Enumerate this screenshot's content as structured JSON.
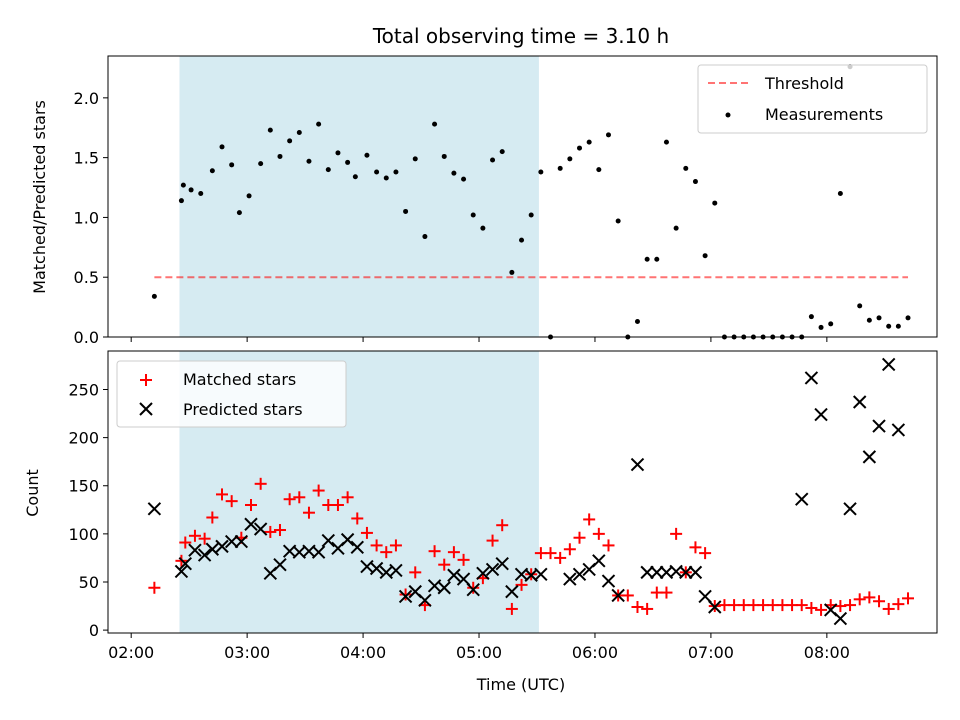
{
  "chart_data": [
    {
      "type": "scatter",
      "title": "Total observing time = 3.10 h",
      "ylabel": "Matched/Predicted stars",
      "xlabel": "",
      "xlim_hours": [
        1.8,
        8.95
      ],
      "ylim": [
        0,
        2.35
      ],
      "yticks": [
        0.0,
        0.5,
        1.0,
        1.5,
        2.0
      ],
      "ytick_labels": [
        "0.0",
        "0.5",
        "1.0",
        "1.5",
        "2.0"
      ],
      "shaded_interval": [
        "02:25",
        "05:31"
      ],
      "shade_color": "#add8e6",
      "legend_position": "upper right",
      "threshold": {
        "name": "Threshold",
        "value": 0.5,
        "x_range": [
          "02:12",
          "08:42"
        ],
        "color": "#ff0000",
        "style": "dashed"
      },
      "series": [
        {
          "name": "Measurements",
          "color": "#000000",
          "marker": "dot",
          "points": [
            [
              "02:12",
              0.34
            ],
            [
              "02:26",
              1.14
            ],
            [
              "02:27",
              1.27
            ],
            [
              "02:31",
              1.23
            ],
            [
              "02:36",
              1.2
            ],
            [
              "02:42",
              1.39
            ],
            [
              "02:47",
              1.59
            ],
            [
              "02:52",
              1.44
            ],
            [
              "02:56",
              1.04
            ],
            [
              "03:01",
              1.18
            ],
            [
              "03:07",
              1.45
            ],
            [
              "03:12",
              1.73
            ],
            [
              "03:17",
              1.51
            ],
            [
              "03:22",
              1.64
            ],
            [
              "03:27",
              1.71
            ],
            [
              "03:32",
              1.47
            ],
            [
              "03:37",
              1.78
            ],
            [
              "03:42",
              1.4
            ],
            [
              "03:47",
              1.54
            ],
            [
              "03:52",
              1.46
            ],
            [
              "03:56",
              1.34
            ],
            [
              "04:02",
              1.52
            ],
            [
              "04:07",
              1.38
            ],
            [
              "04:12",
              1.33
            ],
            [
              "04:17",
              1.38
            ],
            [
              "04:22",
              1.05
            ],
            [
              "04:27",
              1.49
            ],
            [
              "04:32",
              0.84
            ],
            [
              "04:37",
              1.78
            ],
            [
              "04:42",
              1.51
            ],
            [
              "04:47",
              1.37
            ],
            [
              "04:52",
              1.32
            ],
            [
              "04:57",
              1.02
            ],
            [
              "05:02",
              0.91
            ],
            [
              "05:07",
              1.48
            ],
            [
              "05:12",
              1.55
            ],
            [
              "05:17",
              0.54
            ],
            [
              "05:22",
              0.81
            ],
            [
              "05:27",
              1.02
            ],
            [
              "05:32",
              1.38
            ],
            [
              "05:37",
              0.0
            ],
            [
              "05:42",
              1.41
            ],
            [
              "05:47",
              1.49
            ],
            [
              "05:52",
              1.58
            ],
            [
              "05:57",
              1.63
            ],
            [
              "06:02",
              1.4
            ],
            [
              "06:07",
              1.69
            ],
            [
              "06:12",
              0.97
            ],
            [
              "06:17",
              0.0
            ],
            [
              "06:22",
              0.13
            ],
            [
              "06:27",
              0.65
            ],
            [
              "06:32",
              0.65
            ],
            [
              "06:37",
              1.63
            ],
            [
              "06:42",
              0.91
            ],
            [
              "06:47",
              1.41
            ],
            [
              "06:52",
              1.3
            ],
            [
              "06:57",
              0.68
            ],
            [
              "07:02",
              1.12
            ],
            [
              "07:07",
              0.0
            ],
            [
              "07:12",
              0.0
            ],
            [
              "07:17",
              0.0
            ],
            [
              "07:22",
              0.0
            ],
            [
              "07:27",
              0.0
            ],
            [
              "07:32",
              0.0
            ],
            [
              "07:37",
              0.0
            ],
            [
              "07:42",
              0.0
            ],
            [
              "07:47",
              0.0
            ],
            [
              "07:52",
              0.17
            ],
            [
              "07:57",
              0.08
            ],
            [
              "08:02",
              0.11
            ],
            [
              "08:07",
              1.2
            ],
            [
              "08:12",
              2.26
            ],
            [
              "08:17",
              0.26
            ],
            [
              "08:22",
              0.14
            ],
            [
              "08:27",
              0.16
            ],
            [
              "08:32",
              0.09
            ],
            [
              "08:37",
              0.09
            ],
            [
              "08:42",
              0.16
            ]
          ]
        }
      ]
    },
    {
      "type": "scatter",
      "title": "",
      "ylabel": "Count",
      "xlabel": "Time (UTC)",
      "xlim_hours": [
        1.8,
        8.95
      ],
      "ylim": [
        -3,
        290
      ],
      "yticks": [
        0,
        50,
        100,
        150,
        200,
        250
      ],
      "ytick_labels": [
        "0",
        "50",
        "100",
        "150",
        "200",
        "250"
      ],
      "xticks": [
        "02:00",
        "03:00",
        "04:00",
        "05:00",
        "06:00",
        "07:00",
        "08:00"
      ],
      "shaded_interval": [
        "02:25",
        "05:31"
      ],
      "shade_color": "#add8e6",
      "legend_position": "upper left",
      "series": [
        {
          "name": "Matched stars",
          "color": "#ff0000",
          "marker": "plus",
          "points": [
            [
              "02:12",
              44
            ],
            [
              "02:26",
              72
            ],
            [
              "02:28",
              91
            ],
            [
              "02:33",
              98
            ],
            [
              "02:38",
              95
            ],
            [
              "02:42",
              117
            ],
            [
              "02:47",
              141
            ],
            [
              "02:52",
              134
            ],
            [
              "02:57",
              96
            ],
            [
              "03:02",
              130
            ],
            [
              "03:07",
              152
            ],
            [
              "03:12",
              102
            ],
            [
              "03:17",
              104
            ],
            [
              "03:22",
              136
            ],
            [
              "03:27",
              138
            ],
            [
              "03:32",
              122
            ],
            [
              "03:37",
              145
            ],
            [
              "03:42",
              130
            ],
            [
              "03:47",
              130
            ],
            [
              "03:52",
              138
            ],
            [
              "03:57",
              116
            ],
            [
              "04:02",
              101
            ],
            [
              "04:07",
              88
            ],
            [
              "04:12",
              81
            ],
            [
              "04:17",
              88
            ],
            [
              "04:22",
              37
            ],
            [
              "04:27",
              60
            ],
            [
              "04:32",
              26
            ],
            [
              "04:37",
              82
            ],
            [
              "04:42",
              68
            ],
            [
              "04:47",
              81
            ],
            [
              "04:52",
              73
            ],
            [
              "04:57",
              44
            ],
            [
              "05:02",
              54
            ],
            [
              "05:07",
              93
            ],
            [
              "05:12",
              109
            ],
            [
              "05:17",
              22
            ],
            [
              "05:22",
              47
            ],
            [
              "05:27",
              58
            ],
            [
              "05:32",
              80
            ],
            [
              "05:37",
              80
            ],
            [
              "05:42",
              75
            ],
            [
              "05:47",
              84
            ],
            [
              "05:52",
              96
            ],
            [
              "05:57",
              115
            ],
            [
              "06:02",
              100
            ],
            [
              "06:07",
              88
            ],
            [
              "06:12",
              36
            ],
            [
              "06:17",
              36
            ],
            [
              "06:22",
              24
            ],
            [
              "06:27",
              22
            ],
            [
              "06:32",
              39
            ],
            [
              "06:37",
              39
            ],
            [
              "06:42",
              100
            ],
            [
              "06:47",
              60
            ],
            [
              "06:52",
              86
            ],
            [
              "06:57",
              80
            ],
            [
              "07:02",
              25
            ],
            [
              "07:07",
              26
            ],
            [
              "07:12",
              26
            ],
            [
              "07:17",
              26
            ],
            [
              "07:22",
              26
            ],
            [
              "07:27",
              26
            ],
            [
              "07:32",
              26
            ],
            [
              "07:37",
              26
            ],
            [
              "07:42",
              26
            ],
            [
              "07:47",
              26
            ],
            [
              "07:52",
              23
            ],
            [
              "07:57",
              21
            ],
            [
              "08:02",
              26
            ],
            [
              "08:07",
              25
            ],
            [
              "08:12",
              26
            ],
            [
              "08:17",
              32
            ],
            [
              "08:22",
              34
            ],
            [
              "08:27",
              30
            ],
            [
              "08:32",
              22
            ],
            [
              "08:37",
              27
            ],
            [
              "08:42",
              33
            ]
          ]
        },
        {
          "name": "Predicted stars",
          "color": "#000000",
          "marker": "cross",
          "points": [
            [
              "02:12",
              126
            ],
            [
              "02:26",
              61
            ],
            [
              "02:28",
              69
            ],
            [
              "02:33",
              83
            ],
            [
              "02:38",
              78
            ],
            [
              "02:42",
              84
            ],
            [
              "02:47",
              87
            ],
            [
              "02:52",
              92
            ],
            [
              "02:57",
              92
            ],
            [
              "03:02",
              110
            ],
            [
              "03:07",
              105
            ],
            [
              "03:12",
              59
            ],
            [
              "03:17",
              68
            ],
            [
              "03:22",
              82
            ],
            [
              "03:27",
              81
            ],
            [
              "03:32",
              82
            ],
            [
              "03:37",
              81
            ],
            [
              "03:42",
              93
            ],
            [
              "03:47",
              85
            ],
            [
              "03:52",
              94
            ],
            [
              "03:57",
              86
            ],
            [
              "04:02",
              66
            ],
            [
              "04:07",
              64
            ],
            [
              "04:12",
              60
            ],
            [
              "04:17",
              62
            ],
            [
              "04:22",
              35
            ],
            [
              "04:27",
              40
            ],
            [
              "04:32",
              31
            ],
            [
              "04:37",
              46
            ],
            [
              "04:42",
              44
            ],
            [
              "04:47",
              57
            ],
            [
              "04:52",
              53
            ],
            [
              "04:57",
              42
            ],
            [
              "05:02",
              59
            ],
            [
              "05:07",
              63
            ],
            [
              "05:12",
              69
            ],
            [
              "05:17",
              40
            ],
            [
              "05:22",
              58
            ],
            [
              "05:27",
              57
            ],
            [
              "05:32",
              58
            ],
            [
              "05:47",
              53
            ],
            [
              "05:52",
              58
            ],
            [
              "05:57",
              63
            ],
            [
              "06:02",
              72
            ],
            [
              "06:07",
              51
            ],
            [
              "06:12",
              36
            ],
            [
              "06:22",
              172
            ],
            [
              "06:27",
              60
            ],
            [
              "06:32",
              60
            ],
            [
              "06:37",
              60
            ],
            [
              "06:42",
              61
            ],
            [
              "06:47",
              60
            ],
            [
              "06:52",
              60
            ],
            [
              "06:57",
              35
            ],
            [
              "07:02",
              24
            ],
            [
              "07:47",
              136
            ],
            [
              "07:52",
              262
            ],
            [
              "07:57",
              224
            ],
            [
              "08:02",
              21
            ],
            [
              "08:07",
              12
            ],
            [
              "08:12",
              126
            ],
            [
              "08:17",
              237
            ],
            [
              "08:22",
              180
            ],
            [
              "08:27",
              212
            ],
            [
              "08:32",
              276
            ],
            [
              "08:37",
              208
            ]
          ]
        }
      ]
    }
  ]
}
